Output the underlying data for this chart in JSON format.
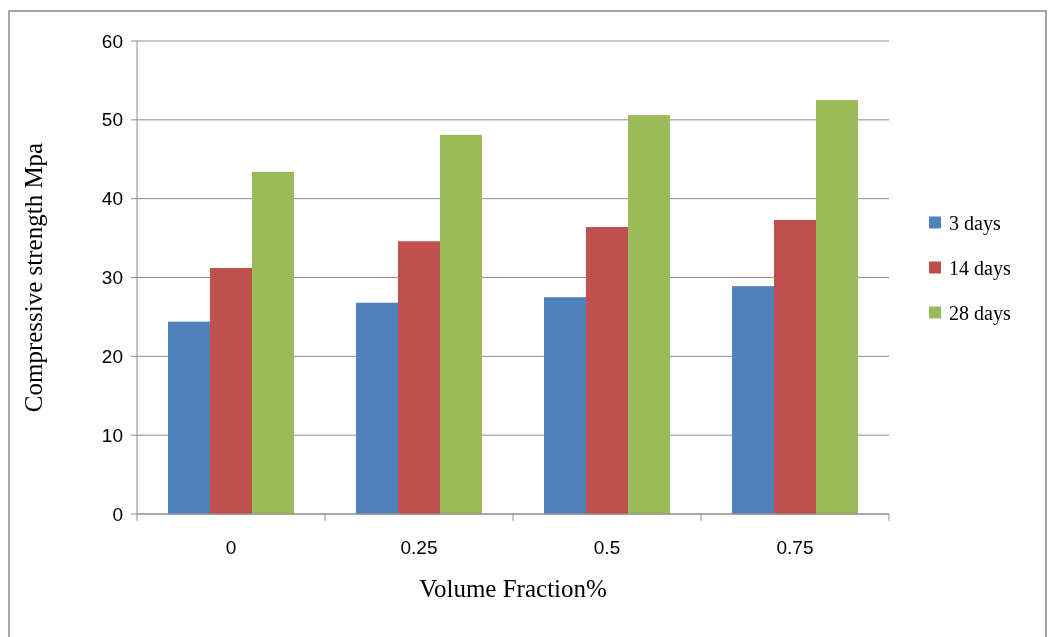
{
  "chart_data": {
    "type": "bar",
    "xlabel": "Volume Fraction%",
    "ylabel": "Compressive strength Mpa",
    "categories": [
      "0",
      "0.25",
      "0.5",
      "0.75"
    ],
    "series": [
      {
        "name": "3 days",
        "color": "#4f81bd",
        "values": [
          24.4,
          26.8,
          27.5,
          28.9
        ]
      },
      {
        "name": "14 days",
        "color": "#c0504d",
        "values": [
          31.2,
          34.6,
          36.4,
          37.3
        ]
      },
      {
        "name": "28 days",
        "color": "#9bbb59",
        "values": [
          43.4,
          48.1,
          50.6,
          52.5
        ]
      }
    ],
    "ylim": [
      0,
      60
    ],
    "yticks": [
      0,
      10,
      20,
      30,
      40,
      50,
      60
    ],
    "grid": "y",
    "legend": "right"
  }
}
